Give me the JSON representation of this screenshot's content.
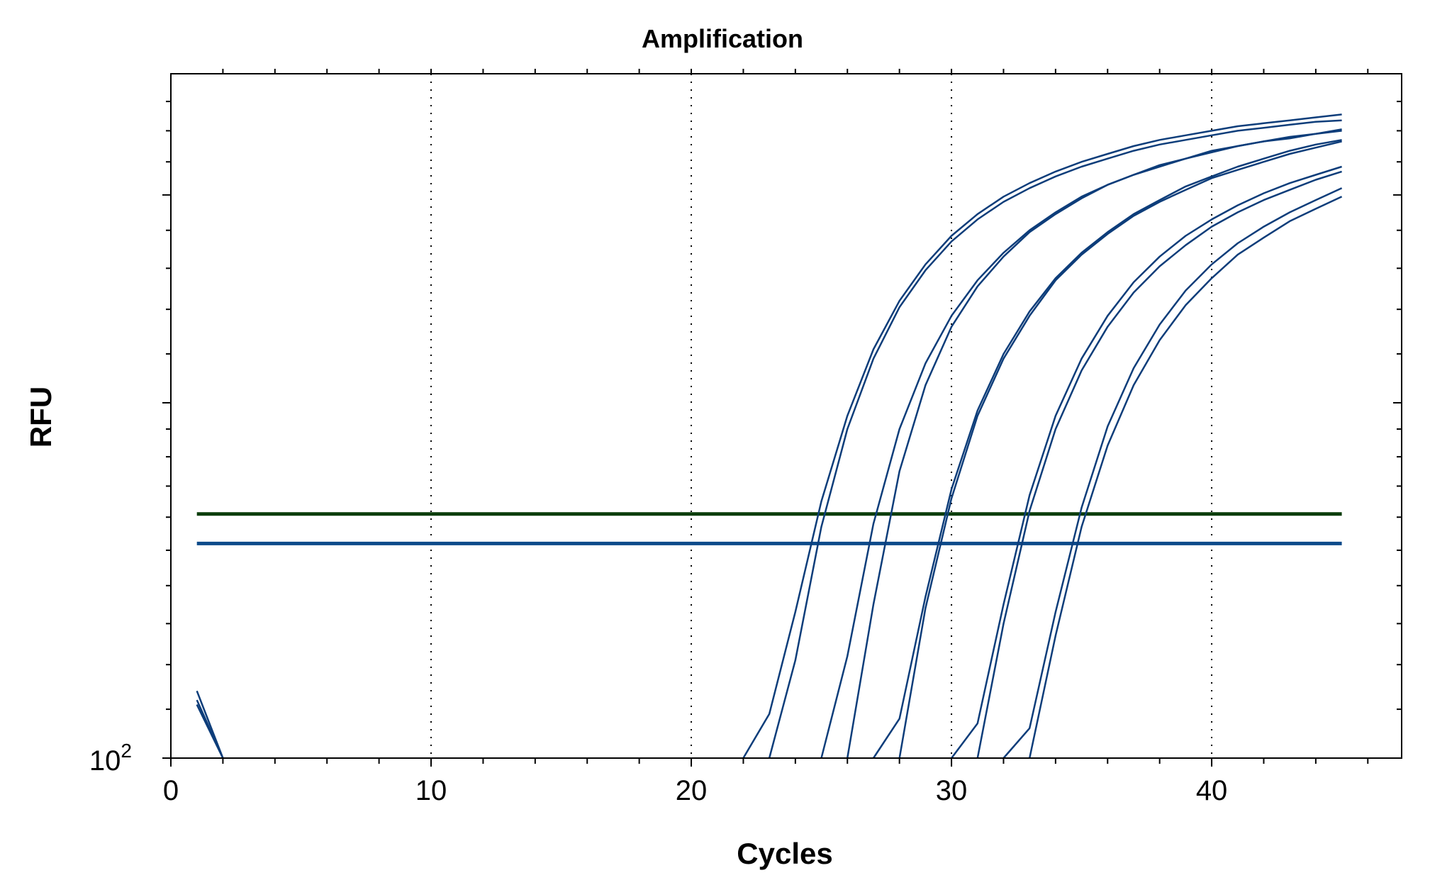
{
  "chart_data": {
    "type": "line",
    "title": "Amplification",
    "xlabel": "Cycles",
    "ylabel": "RFU",
    "xlim": [
      0,
      47.3
    ],
    "ylim": [
      100,
      380
    ],
    "y_scale": "log",
    "x_ticks": [
      0,
      10,
      20,
      30,
      40
    ],
    "x_tick_labels": [
      "0",
      "10",
      "20",
      "30",
      "40"
    ],
    "y_tick_label": {
      "base": "10",
      "exponent": "2"
    },
    "grid": {
      "x": "dotted",
      "y": false
    },
    "thresholds": [
      {
        "value": 161,
        "color": "#0a3d0a"
      },
      {
        "value": 152,
        "color": "#0d4a8a"
      }
    ],
    "series_color": "#0d3d7a",
    "series": [
      {
        "x": [
          1,
          2
        ],
        "y": [
          114,
          100
        ]
      },
      {
        "x": [
          1,
          2
        ],
        "y": [
          112,
          100
        ]
      },
      {
        "x": [
          1,
          2
        ],
        "y": [
          111,
          100
        ]
      },
      {
        "x": [
          22,
          23,
          24,
          25,
          26,
          27,
          28,
          29,
          30,
          31,
          32,
          33,
          34,
          35,
          36,
          37,
          38,
          39,
          40,
          41,
          42,
          43,
          44,
          45
        ],
        "y": [
          100,
          109,
          133,
          165,
          195,
          222,
          244,
          262,
          277,
          289,
          299,
          307,
          314,
          320,
          325,
          330,
          334,
          337,
          340,
          343,
          345,
          347,
          349,
          351
        ]
      },
      {
        "x": [
          23,
          24,
          25,
          26,
          27,
          28,
          29,
          30,
          31,
          32,
          33,
          34,
          35,
          36,
          37,
          38,
          39,
          40,
          41,
          42,
          43,
          44,
          45
        ],
        "y": [
          100,
          121,
          157,
          190,
          218,
          241,
          259,
          274,
          286,
          296,
          304,
          311,
          317,
          322,
          327,
          331,
          334,
          337,
          340,
          342,
          344,
          346,
          347
        ]
      },
      {
        "x": [
          25,
          26,
          27,
          28,
          29,
          30,
          31,
          32,
          33,
          34,
          35,
          36,
          37,
          38,
          39,
          40,
          41,
          42,
          43,
          44,
          45
        ],
        "y": [
          100,
          122,
          158,
          190,
          216,
          237,
          254,
          268,
          280,
          290,
          299,
          306,
          312,
          317,
          322,
          326,
          330,
          333,
          335,
          338,
          340
        ]
      },
      {
        "x": [
          26,
          27,
          28,
          29,
          30,
          31,
          32,
          33,
          34,
          35,
          36,
          37,
          38,
          39,
          40,
          41,
          42,
          43,
          44,
          45
        ],
        "y": [
          100,
          135,
          175,
          207,
          232,
          251,
          266,
          279,
          289,
          298,
          306,
          312,
          318,
          322,
          327,
          330,
          333,
          336,
          338,
          341
        ]
      },
      {
        "x": [
          27,
          28,
          29,
          30,
          31,
          32,
          33,
          34,
          35,
          36,
          37,
          38,
          39,
          40,
          41,
          42,
          43,
          44,
          45
        ],
        "y": [
          100,
          108,
          137,
          169,
          197,
          220,
          239,
          255,
          268,
          279,
          289,
          297,
          305,
          311,
          317,
          322,
          327,
          331,
          334
        ]
      },
      {
        "x": [
          28,
          29,
          30,
          31,
          32,
          33,
          34,
          35,
          36,
          37,
          38,
          39,
          40,
          41,
          42,
          43,
          44,
          45
        ],
        "y": [
          100,
          134,
          166,
          195,
          218,
          237,
          254,
          267,
          278,
          288,
          296,
          303,
          310,
          315,
          320,
          325,
          329,
          333
        ]
      },
      {
        "x": [
          30,
          31,
          32,
          33,
          34,
          35,
          36,
          37,
          38,
          39,
          40,
          41,
          42,
          43,
          44,
          45
        ],
        "y": [
          100,
          107,
          135,
          167,
          195,
          218,
          237,
          253,
          266,
          277,
          286,
          294,
          301,
          307,
          312,
          317
        ]
      },
      {
        "x": [
          31,
          32,
          33,
          34,
          35,
          36,
          37,
          38,
          39,
          40,
          41,
          42,
          43,
          44,
          45
        ],
        "y": [
          100,
          130,
          162,
          190,
          213,
          232,
          248,
          261,
          272,
          282,
          290,
          297,
          303,
          309,
          314
        ]
      },
      {
        "x": [
          32,
          33,
          34,
          35,
          36,
          37,
          38,
          39,
          40,
          41,
          42,
          43,
          44,
          45
        ],
        "y": [
          100,
          106,
          133,
          163,
          191,
          214,
          233,
          249,
          262,
          273,
          282,
          290,
          297,
          304
        ]
      },
      {
        "x": [
          33,
          34,
          35,
          36,
          37,
          38,
          39,
          40,
          41,
          42,
          43,
          44,
          45
        ],
        "y": [
          100,
          127,
          157,
          184,
          207,
          226,
          242,
          255,
          267,
          276,
          285,
          292,
          299
        ]
      }
    ]
  }
}
